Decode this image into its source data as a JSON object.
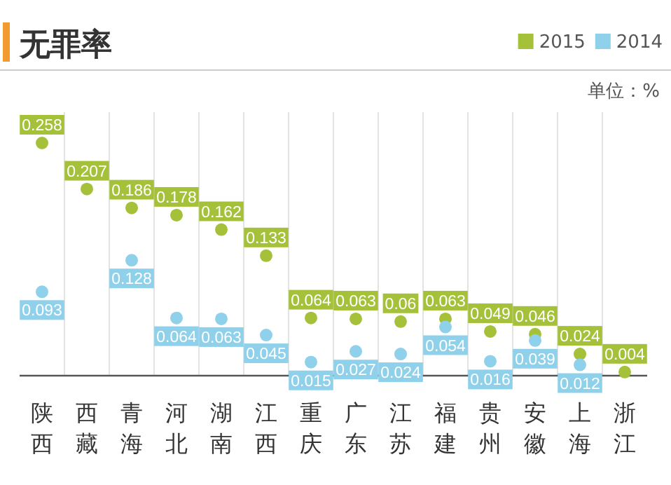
{
  "chart_data": {
    "type": "scatter",
    "title": "无罪率",
    "annotations": [
      "单位：%"
    ],
    "categories": [
      "陕西",
      "西藏",
      "青海",
      "河北",
      "湖南",
      "江西",
      "重庆",
      "广东",
      "江苏",
      "福建",
      "贵州",
      "安徽",
      "上海",
      "浙江"
    ],
    "series": [
      {
        "name": "2015",
        "color": "#a5c13a",
        "values": [
          0.258,
          0.207,
          0.186,
          0.178,
          0.162,
          0.133,
          0.064,
          0.063,
          0.06,
          0.063,
          0.049,
          0.046,
          0.024,
          0.004
        ]
      },
      {
        "name": "2014",
        "color": "#8fd0ea",
        "values": [
          0.093,
          null,
          0.128,
          0.064,
          0.063,
          0.045,
          0.015,
          0.027,
          0.024,
          0.054,
          0.016,
          0.039,
          0.012,
          null
        ]
      }
    ],
    "data_labels": true,
    "grid": "x",
    "legend": "top right",
    "marker": "circle"
  }
}
